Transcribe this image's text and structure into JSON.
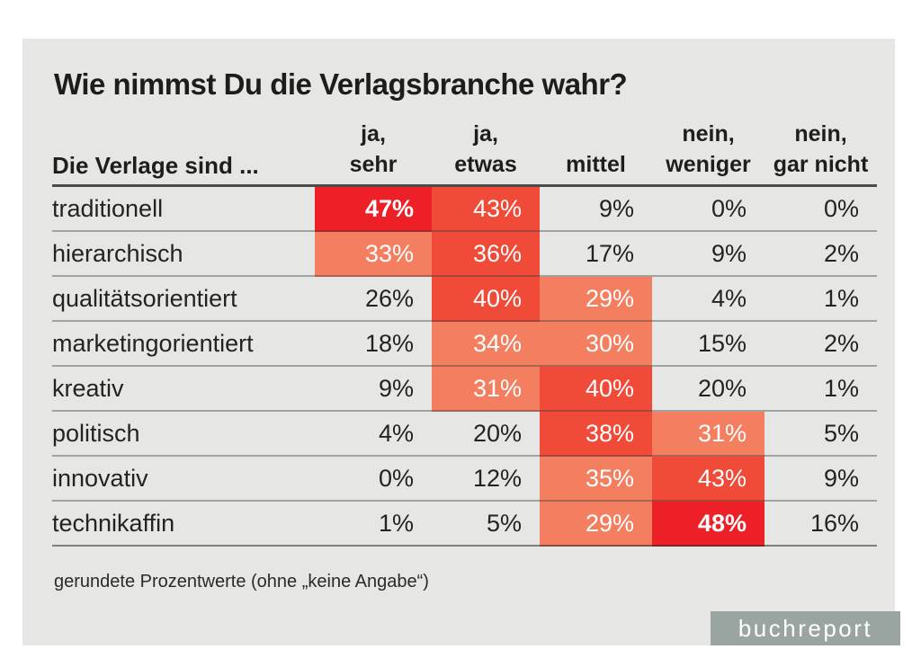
{
  "title": "Wie nimmst Du die Verlagsbranche wahr?",
  "table": {
    "row_header": "Die Verlage sind ...",
    "columns": [
      {
        "line1": "ja,",
        "line2": "sehr"
      },
      {
        "line1": "ja,",
        "line2": "etwas"
      },
      {
        "line1": "",
        "line2": "mittel"
      },
      {
        "line1": "nein,",
        "line2": "weniger"
      },
      {
        "line1": "nein,",
        "line2": "gar nicht"
      }
    ],
    "rows": [
      {
        "label": "traditionell",
        "values": [
          "47%",
          "43%",
          "9%",
          "0%",
          "0%"
        ],
        "levels": [
          3,
          2,
          0,
          0,
          0
        ]
      },
      {
        "label": "hierarchisch",
        "values": [
          "33%",
          "36%",
          "17%",
          "9%",
          "2%"
        ],
        "levels": [
          1,
          2,
          0,
          0,
          0
        ]
      },
      {
        "label": "qualitätsorientiert",
        "values": [
          "26%",
          "40%",
          "29%",
          "4%",
          "1%"
        ],
        "levels": [
          0,
          2,
          1,
          0,
          0
        ]
      },
      {
        "label": "marketingorientiert",
        "values": [
          "18%",
          "34%",
          "30%",
          "15%",
          "2%"
        ],
        "levels": [
          0,
          1,
          1,
          0,
          0
        ]
      },
      {
        "label": "kreativ",
        "values": [
          "9%",
          "31%",
          "40%",
          "20%",
          "1%"
        ],
        "levels": [
          0,
          1,
          2,
          0,
          0
        ]
      },
      {
        "label": "politisch",
        "values": [
          "4%",
          "20%",
          "38%",
          "31%",
          "5%"
        ],
        "levels": [
          0,
          0,
          2,
          1,
          0
        ]
      },
      {
        "label": "innovativ",
        "values": [
          "0%",
          "12%",
          "35%",
          "43%",
          "9%"
        ],
        "levels": [
          0,
          0,
          1,
          2,
          0
        ]
      },
      {
        "label": "technikaffin",
        "values": [
          "1%",
          "5%",
          "29%",
          "48%",
          "16%"
        ],
        "levels": [
          0,
          0,
          1,
          3,
          0
        ]
      }
    ]
  },
  "footnote": "gerundete Prozentwerte (ohne „keine Angabe“)",
  "logo": "buchreport",
  "colors": {
    "highlight_strong": "#ed2028",
    "highlight_medium": "#f04a38",
    "highlight_light": "#f47f60",
    "panel_background": "#e6e7e5",
    "logo_background": "#9aa5a1"
  },
  "chart_data": {
    "type": "heatmap",
    "title": "Wie nimmst Du die Verlagsbranche wahr?",
    "row_header": "Die Verlage sind ...",
    "columns": [
      "ja, sehr",
      "ja, etwas",
      "mittel",
      "nein, weniger",
      "nein, gar nicht"
    ],
    "rows": [
      "traditionell",
      "hierarchisch",
      "qualitätsorientiert",
      "marketingorientiert",
      "kreativ",
      "politisch",
      "innovativ",
      "technikaffin"
    ],
    "values_percent": [
      [
        47,
        43,
        9,
        0,
        0
      ],
      [
        33,
        36,
        17,
        9,
        2
      ],
      [
        26,
        40,
        29,
        4,
        1
      ],
      [
        18,
        34,
        30,
        15,
        2
      ],
      [
        9,
        31,
        40,
        20,
        1
      ],
      [
        4,
        20,
        38,
        31,
        5
      ],
      [
        0,
        12,
        35,
        43,
        9
      ],
      [
        1,
        5,
        29,
        48,
        16
      ]
    ],
    "cell_highlight_levels": [
      [
        3,
        2,
        0,
        0,
        0
      ],
      [
        1,
        2,
        0,
        0,
        0
      ],
      [
        0,
        2,
        1,
        0,
        0
      ],
      [
        0,
        1,
        1,
        0,
        0
      ],
      [
        0,
        1,
        2,
        0,
        0
      ],
      [
        0,
        0,
        2,
        1,
        0
      ],
      [
        0,
        0,
        1,
        2,
        0
      ],
      [
        0,
        0,
        1,
        3,
        0
      ]
    ],
    "note": "gerundete Prozentwerte (ohne „keine Angabe“)",
    "source": "buchreport"
  }
}
